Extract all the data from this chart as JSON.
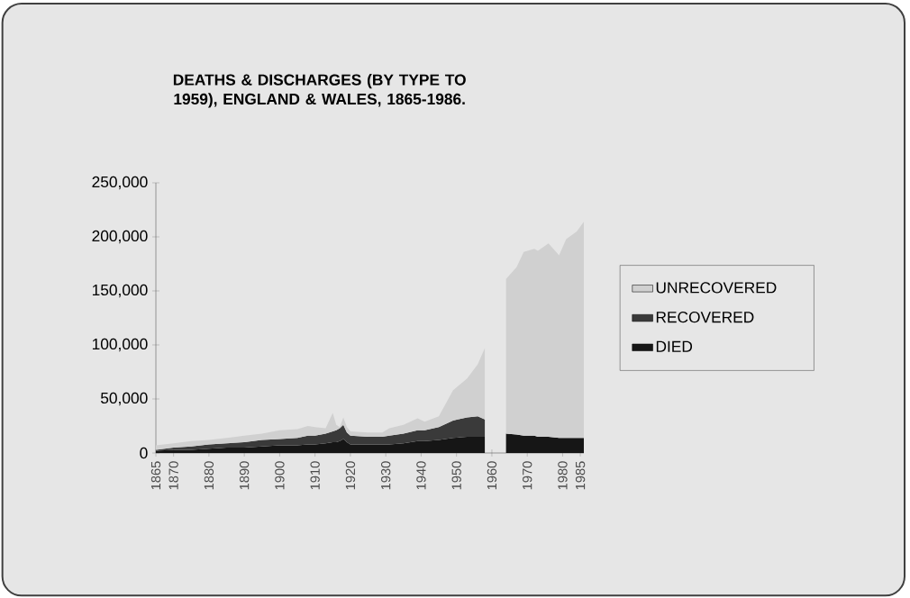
{
  "chart_data": {
    "type": "area",
    "stacked": true,
    "title": "DEATHS & DISCHARGES (BY TYPE TO 1959), ENGLAND & WALES, 1865-1986.",
    "x": [
      1865,
      1870,
      1875,
      1880,
      1885,
      1890,
      1895,
      1900,
      1905,
      1908,
      1910,
      1913,
      1915,
      1916,
      1917,
      1918,
      1919,
      1920,
      1925,
      1929,
      1931,
      1935,
      1939,
      1941,
      1945,
      1949,
      1953,
      1956,
      1958,
      1960,
      1964,
      1967,
      1969,
      1972,
      1973,
      1976,
      1979,
      1981,
      1984,
      1986
    ],
    "series": [
      {
        "name": "DIED",
        "color": "#161616",
        "values": [
          2000,
          3000,
          3000,
          4000,
          5000,
          5000,
          6000,
          7000,
          7000,
          8000,
          8000,
          9000,
          10000,
          10000,
          11000,
          13000,
          10000,
          8000,
          8000,
          8000,
          8000,
          9000,
          11000,
          11000,
          12000,
          14000,
          15000,
          15000,
          15000,
          null,
          18000,
          17000,
          16000,
          16000,
          15000,
          15000,
          14000,
          14000,
          14000,
          14000
        ]
      },
      {
        "name": "RECOVERED",
        "color": "#3a3a3a",
        "values": [
          1000,
          2000,
          3000,
          4000,
          4000,
          5000,
          6000,
          6000,
          7000,
          8000,
          8000,
          9000,
          10000,
          11000,
          12000,
          13000,
          9000,
          8000,
          7000,
          7000,
          8000,
          9000,
          10000,
          10000,
          12000,
          16000,
          18000,
          19000,
          16000,
          null,
          0,
          0,
          0,
          0,
          0,
          0,
          0,
          0,
          0,
          0
        ]
      },
      {
        "name": "UNRECOVERED",
        "color": "#d0d0d0",
        "values": [
          4000,
          4000,
          5000,
          4000,
          5000,
          6000,
          6000,
          8000,
          8000,
          9000,
          8000,
          5000,
          17000,
          5000,
          1000,
          7000,
          5000,
          4000,
          4000,
          4000,
          7000,
          8000,
          11000,
          8000,
          10000,
          28000,
          36000,
          48000,
          66000,
          null,
          143000,
          155000,
          170000,
          173000,
          172000,
          179000,
          169000,
          184000,
          191000,
          200000
        ]
      }
    ],
    "xlim": [
      1865,
      1986
    ],
    "xticks": [
      1865,
      1870,
      1880,
      1890,
      1900,
      1910,
      1920,
      1930,
      1940,
      1950,
      1960,
      1970,
      1980,
      1985
    ],
    "ylim": [
      0,
      250000
    ],
    "yticks": [
      {
        "value": 0,
        "label": "0"
      },
      {
        "value": 50000,
        "label": "50,000"
      },
      {
        "value": 100000,
        "label": "100,000"
      },
      {
        "value": 150000,
        "label": "150,000"
      },
      {
        "value": 200000,
        "label": "200,000"
      },
      {
        "value": 250000,
        "label": "250,000"
      }
    ],
    "legend": "right"
  }
}
